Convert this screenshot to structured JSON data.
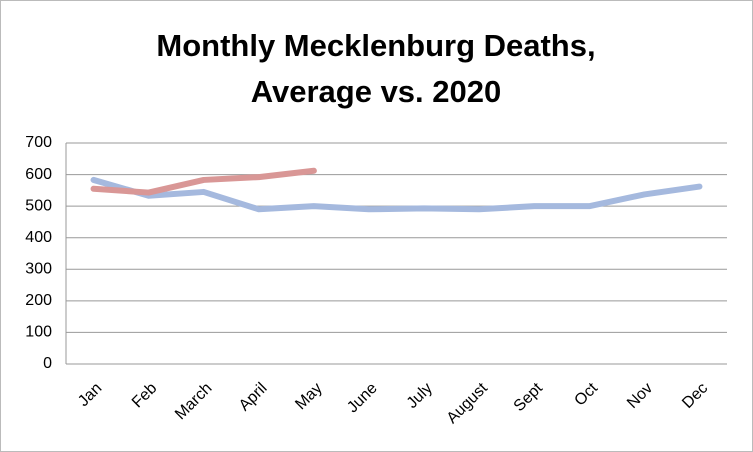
{
  "chart_data": {
    "type": "line",
    "title": [
      "Monthly Mecklenburg Deaths,",
      "Average vs. 2020"
    ],
    "categories": [
      "Jan",
      "Feb",
      "March",
      "April",
      "May",
      "June",
      "July",
      "August",
      "Sept",
      "Oct",
      "Nov",
      "Dec"
    ],
    "series": [
      {
        "color": "#a5b9de",
        "values": [
          583,
          533,
          545,
          490,
          500,
          490,
          493,
          490,
          500,
          500,
          537,
          562
        ]
      },
      {
        "color": "#d99796",
        "values": [
          555,
          543,
          583,
          592,
          612,
          null,
          null,
          null,
          null,
          null,
          null,
          null
        ]
      }
    ],
    "ylim": [
      0,
      700
    ],
    "yticks": [
      0,
      100,
      200,
      300,
      400,
      500,
      600,
      700
    ],
    "grid": true
  }
}
